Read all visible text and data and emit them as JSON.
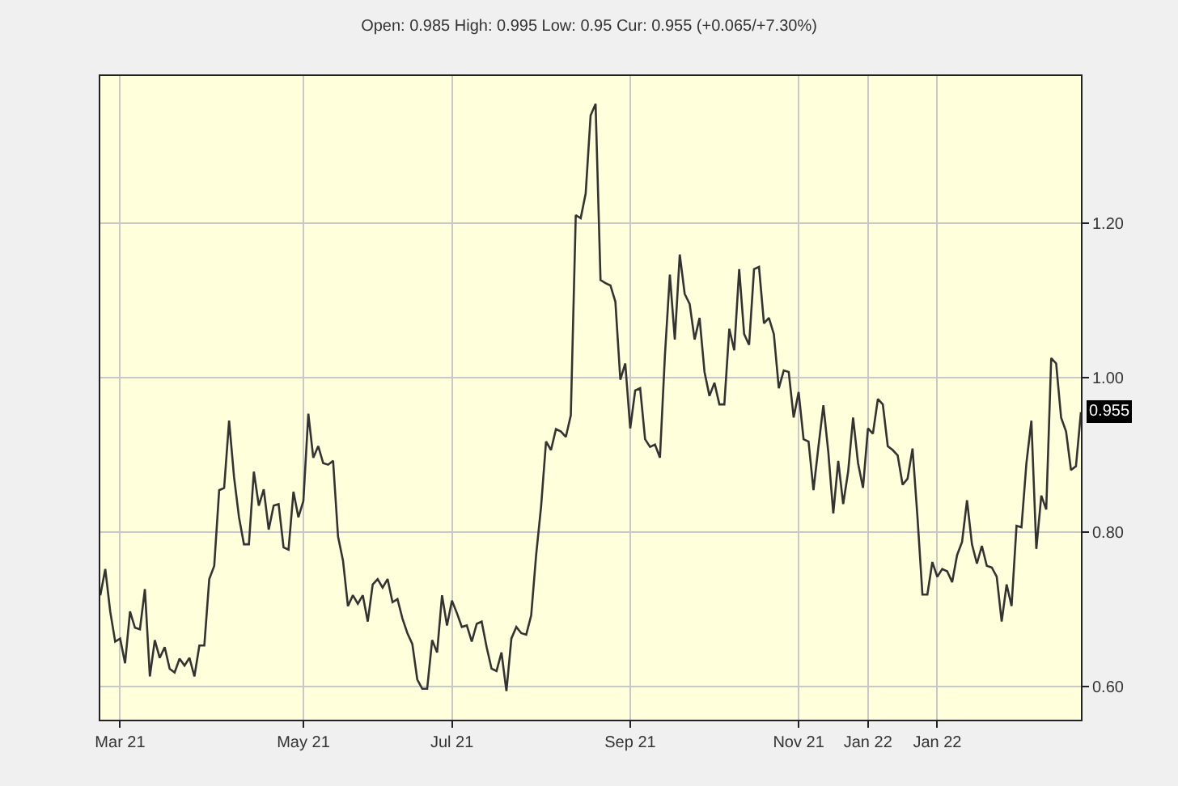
{
  "chart_data": {
    "type": "line",
    "subtitle": "Open: 0.985 High: 0.995 Low: 0.95 Cur: 0.955 (+0.065/+7.30%)",
    "categories": [
      null,
      null,
      null,
      null,
      "Mar 21",
      null,
      null,
      null,
      null,
      null,
      null,
      null,
      null,
      null,
      null,
      null,
      null,
      null,
      null,
      null,
      null,
      null,
      null,
      null,
      null,
      null,
      null,
      null,
      null,
      null,
      null,
      null,
      null,
      null,
      null,
      null,
      null,
      null,
      null,
      null,
      null,
      "May 21",
      null,
      null,
      null,
      null,
      null,
      null,
      null,
      null,
      null,
      null,
      null,
      null,
      null,
      null,
      null,
      null,
      null,
      null,
      null,
      null,
      null,
      null,
      null,
      null,
      null,
      null,
      null,
      null,
      null,
      "Jul 21",
      null,
      null,
      null,
      null,
      null,
      null,
      null,
      null,
      null,
      null,
      null,
      null,
      null,
      null,
      null,
      null,
      null,
      null,
      null,
      null,
      null,
      null,
      null,
      null,
      null,
      null,
      null,
      null,
      null,
      null,
      null,
      null,
      null,
      null,
      null,
      "Sep 21",
      null,
      null,
      null,
      null,
      null,
      null,
      null,
      null,
      null,
      null,
      null,
      null,
      null,
      null,
      null,
      null,
      null,
      null,
      null,
      null,
      null,
      null,
      null,
      null,
      null,
      null,
      null,
      null,
      null,
      null,
      null,
      null,
      null,
      "Nov 21",
      null,
      null,
      null,
      null,
      null,
      null,
      null,
      null,
      null,
      null,
      null,
      null,
      null,
      "Jan 22",
      null,
      null,
      null,
      null,
      null,
      null,
      null,
      null,
      null,
      null,
      null,
      null,
      null,
      "Jan 22",
      null,
      null,
      null,
      null,
      null,
      null,
      null,
      null,
      null,
      null,
      null,
      null,
      null,
      null,
      null,
      null,
      null,
      null,
      null,
      null,
      null,
      null,
      null,
      null,
      null,
      null,
      null,
      null,
      null
    ],
    "series": [
      {
        "color": "#333333",
        "values": [
          0.718,
          0.752,
          0.697,
          0.658,
          0.662,
          0.63,
          0.697,
          0.676,
          0.674,
          0.726,
          0.613,
          0.66,
          0.637,
          0.651,
          0.623,
          0.618,
          0.636,
          0.627,
          0.637,
          0.613,
          0.653,
          0.653,
          0.739,
          0.756,
          0.854,
          0.857,
          0.944,
          0.871,
          0.819,
          0.784,
          0.784,
          0.878,
          0.834,
          0.855,
          0.803,
          0.834,
          0.836,
          0.78,
          0.777,
          0.852,
          0.819,
          0.84,
          0.953,
          0.896,
          0.911,
          0.889,
          0.887,
          0.892,
          0.794,
          0.763,
          0.704,
          0.718,
          0.707,
          0.718,
          0.684,
          0.732,
          0.739,
          0.728,
          0.739,
          0.709,
          0.713,
          0.688,
          0.669,
          0.655,
          0.609,
          0.597,
          0.597,
          0.66,
          0.644,
          0.718,
          0.679,
          0.711,
          0.695,
          0.677,
          0.679,
          0.658,
          0.681,
          0.684,
          0.651,
          0.623,
          0.62,
          0.644,
          0.594,
          0.662,
          0.677,
          0.669,
          0.667,
          0.692,
          0.77,
          0.833,
          0.917,
          0.906,
          0.933,
          0.93,
          0.923,
          0.951,
          1.21,
          1.206,
          1.238,
          1.339,
          1.354,
          1.126,
          1.122,
          1.119,
          1.098,
          0.997,
          1.018,
          0.934,
          0.983,
          0.986,
          0.92,
          0.91,
          0.913,
          0.896,
          1.028,
          1.133,
          1.049,
          1.159,
          1.108,
          1.095,
          1.049,
          1.077,
          1.007,
          0.976,
          0.993,
          0.965,
          0.965,
          1.063,
          1.035,
          1.14,
          1.056,
          1.042,
          1.14,
          1.143,
          1.07,
          1.077,
          1.056,
          0.986,
          1.009,
          1.007,
          0.948,
          0.981,
          0.92,
          0.917,
          0.854,
          0.91,
          0.964,
          0.903,
          0.824,
          0.892,
          0.836,
          0.878,
          0.948,
          0.889,
          0.857,
          0.934,
          0.927,
          0.972,
          0.965,
          0.911,
          0.906,
          0.899,
          0.861,
          0.869,
          0.908,
          0.819,
          0.719,
          0.719,
          0.761,
          0.742,
          0.752,
          0.749,
          0.735,
          0.77,
          0.787,
          0.841,
          0.784,
          0.759,
          0.782,
          0.756,
          0.754,
          0.742,
          0.684,
          0.732,
          0.704,
          0.808,
          0.806,
          0.889,
          0.944,
          0.778,
          0.847,
          0.829,
          1.025,
          1.018,
          0.948,
          0.93,
          0.88,
          0.885,
          0.955
        ]
      }
    ],
    "ylim": [
      0.557,
      1.39
    ],
    "yticks": [
      {
        "value": 0.6,
        "label": "0.60"
      },
      {
        "value": 0.8,
        "label": "0.80"
      },
      {
        "value": 1.0,
        "label": "1.00"
      },
      {
        "value": 1.2,
        "label": "1.20"
      }
    ],
    "annotations": [
      "0.955"
    ],
    "grid": true,
    "marker": "none",
    "line_style": "solid"
  }
}
